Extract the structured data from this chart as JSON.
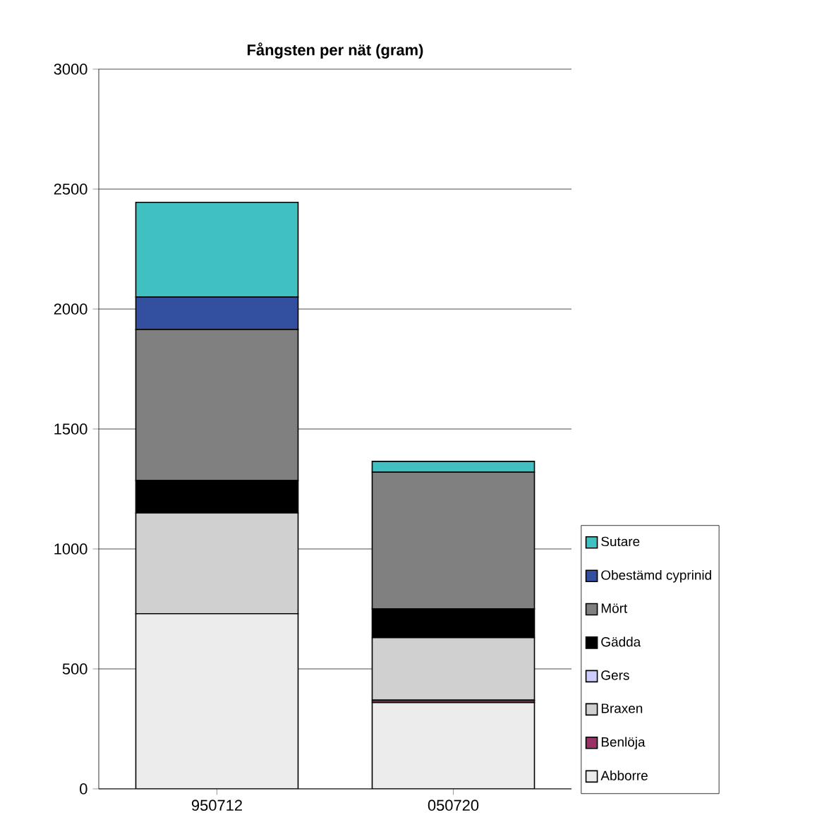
{
  "chart_data": {
    "type": "bar",
    "title": "Fångsten per nät (gram)",
    "stacked": true,
    "categories": [
      "950712",
      "050720"
    ],
    "series": [
      {
        "name": "Abborre",
        "color": "#ececec",
        "values": [
          730,
          360
        ]
      },
      {
        "name": "Benlöja",
        "color": "#993366",
        "values": [
          0,
          10
        ]
      },
      {
        "name": "Braxen",
        "color": "#d0d0d0",
        "values": [
          420,
          260
        ]
      },
      {
        "name": "Gers",
        "color": "#ccccff",
        "values": [
          0,
          0
        ]
      },
      {
        "name": "Gädda",
        "color": "#000000",
        "values": [
          135,
          120
        ]
      },
      {
        "name": "Mört",
        "color": "#808080",
        "values": [
          630,
          570
        ]
      },
      {
        "name": "Obestämd cyprinid",
        "color": "#3350a0",
        "values": [
          135,
          0
        ]
      },
      {
        "name": "Sutare",
        "color": "#40c0c0",
        "values": [
          395,
          45
        ]
      }
    ],
    "ylim": [
      0,
      3000
    ],
    "yticks": [
      0,
      500,
      1000,
      1500,
      2000,
      2500,
      3000
    ],
    "grid": "y",
    "legend": "right"
  }
}
